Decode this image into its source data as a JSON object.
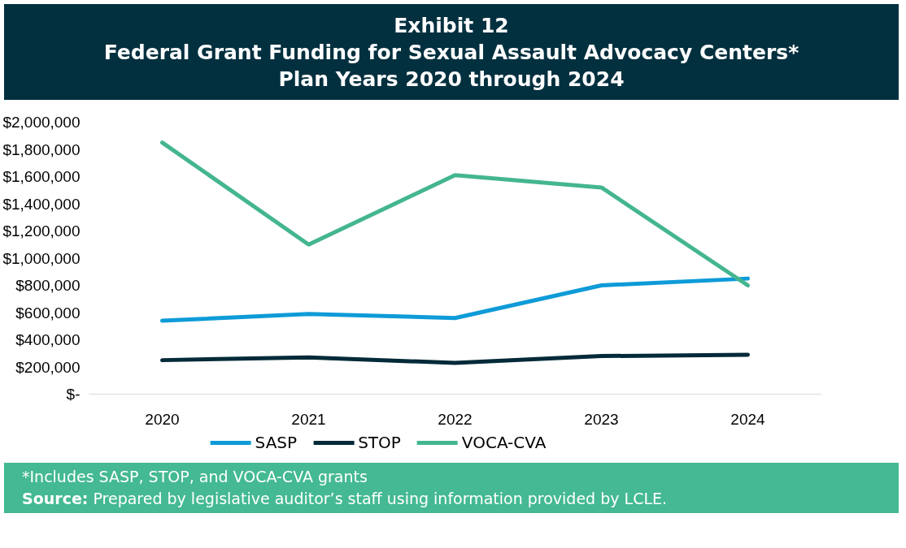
{
  "chart_data": {
    "type": "line",
    "title": "Exhibit 12\nFederal Grant Funding for Sexual Assault Advocacy Centers*\nPlan Years 2020 through 2024",
    "categories": [
      "2020",
      "2021",
      "2022",
      "2023",
      "2024"
    ],
    "series": [
      {
        "name": "SASP",
        "color": "#0e9bd8",
        "values": [
          540000,
          590000,
          560000,
          800000,
          850000
        ]
      },
      {
        "name": "STOP",
        "color": "#032a38",
        "values": [
          250000,
          270000,
          230000,
          280000,
          290000
        ]
      },
      {
        "name": "VOCA-CVA",
        "color": "#44b68f",
        "values": [
          1850000,
          1100000,
          1610000,
          1520000,
          800000
        ]
      }
    ],
    "ylim": [
      0,
      2000000
    ],
    "yticks": [
      {
        "value": 0,
        "label": "$-"
      },
      {
        "value": 200000,
        "label": "$200,000"
      },
      {
        "value": 400000,
        "label": "$400,000"
      },
      {
        "value": 600000,
        "label": "$600,000"
      },
      {
        "value": 800000,
        "label": "$800,000"
      },
      {
        "value": 1000000,
        "label": "$1,000,000"
      },
      {
        "value": 1200000,
        "label": "$1,200,000"
      },
      {
        "value": 1400000,
        "label": "$1,400,000"
      },
      {
        "value": 1600000,
        "label": "$1,600,000"
      },
      {
        "value": 1800000,
        "label": "$1,800,000"
      },
      {
        "value": 2000000,
        "label": "$2,000,000"
      }
    ],
    "grid": false,
    "legend": "bottom",
    "marker": "none",
    "line_style": "solid",
    "annotations": [
      "*Includes SASP, STOP, and VOCA-CVA grants",
      "Source: Prepared by legislative auditor’s staff using information provided by LCLE."
    ]
  }
}
